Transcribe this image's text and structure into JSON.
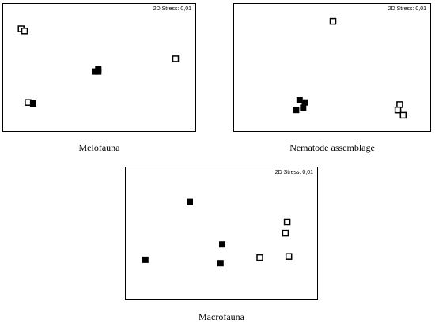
{
  "colors": {
    "filled": "#000000",
    "open_fill": "#ffffff",
    "stroke": "#000000"
  },
  "chart_data": [
    {
      "type": "scatter",
      "caption": "Meiofauna",
      "stress_label": "2D Stress: 0,01",
      "xlim": [
        0,
        1
      ],
      "ylim": [
        0,
        1
      ],
      "grid": false,
      "points": [
        {
          "x": 0.04,
          "y": 0.87,
          "marker": "open"
        },
        {
          "x": 0.06,
          "y": 0.85,
          "marker": "open"
        },
        {
          "x": 0.94,
          "y": 0.59,
          "marker": "open"
        },
        {
          "x": 0.08,
          "y": 0.18,
          "marker": "open"
        },
        {
          "x": 0.11,
          "y": 0.17,
          "marker": "filled"
        },
        {
          "x": 0.47,
          "y": 0.47,
          "marker": "filled"
        },
        {
          "x": 0.49,
          "y": 0.47,
          "marker": "filled"
        },
        {
          "x": 0.49,
          "y": 0.49,
          "marker": "filled"
        }
      ]
    },
    {
      "type": "scatter",
      "caption": "Nematode assemblage",
      "stress_label": "2D Stress: 0,01",
      "xlim": [
        0,
        1
      ],
      "ylim": [
        0,
        1
      ],
      "grid": false,
      "points": [
        {
          "x": 0.5,
          "y": 0.94,
          "marker": "open"
        },
        {
          "x": 0.31,
          "y": 0.2,
          "marker": "filled"
        },
        {
          "x": 0.34,
          "y": 0.18,
          "marker": "filled"
        },
        {
          "x": 0.33,
          "y": 0.13,
          "marker": "filled"
        },
        {
          "x": 0.29,
          "y": 0.11,
          "marker": "filled"
        },
        {
          "x": 0.88,
          "y": 0.16,
          "marker": "open"
        },
        {
          "x": 0.87,
          "y": 0.11,
          "marker": "open"
        },
        {
          "x": 0.9,
          "y": 0.06,
          "marker": "open"
        }
      ]
    },
    {
      "type": "scatter",
      "caption": "Macrofauna",
      "stress_label": "2D Stress: 0,01",
      "xlim": [
        0,
        1
      ],
      "ylim": [
        0,
        1
      ],
      "grid": false,
      "points": [
        {
          "x": 0.31,
          "y": 0.79,
          "marker": "filled"
        },
        {
          "x": 0.05,
          "y": 0.27,
          "marker": "filled"
        },
        {
          "x": 0.5,
          "y": 0.41,
          "marker": "filled"
        },
        {
          "x": 0.49,
          "y": 0.24,
          "marker": "filled"
        },
        {
          "x": 0.72,
          "y": 0.29,
          "marker": "open"
        },
        {
          "x": 0.88,
          "y": 0.61,
          "marker": "open"
        },
        {
          "x": 0.87,
          "y": 0.51,
          "marker": "open"
        },
        {
          "x": 0.89,
          "y": 0.3,
          "marker": "open"
        }
      ]
    }
  ]
}
